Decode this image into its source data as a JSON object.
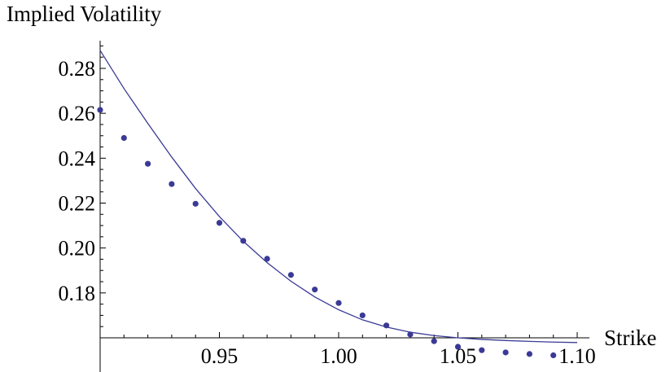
{
  "chart_data": {
    "type": "scatter",
    "ylabel": "Implied Volatility",
    "xlabel": "Strike",
    "xlim": [
      0.9,
      1.1
    ],
    "ylim": [
      0.16,
      0.29
    ],
    "x_axis_crosses_y_at": 0.16,
    "x_ticks": [
      {
        "value": 0.95,
        "label": "0.95"
      },
      {
        "value": 1.0,
        "label": "1.00"
      },
      {
        "value": 1.05,
        "label": "1.05"
      },
      {
        "value": 1.1,
        "label": "1.10"
      }
    ],
    "y_ticks": [
      {
        "value": 0.18,
        "label": "0.18"
      },
      {
        "value": 0.2,
        "label": "0.20"
      },
      {
        "value": 0.22,
        "label": "0.22"
      },
      {
        "value": 0.24,
        "label": "0.24"
      },
      {
        "value": 0.26,
        "label": "0.26"
      },
      {
        "value": 0.28,
        "label": "0.28"
      }
    ],
    "colors": {
      "series": "#3a3a96",
      "axis": "#000000"
    },
    "series": [
      {
        "kind": "points",
        "x": [
          0.9,
          0.91,
          0.92,
          0.93,
          0.94,
          0.95,
          0.96,
          0.97,
          0.98,
          0.99,
          1.0,
          1.01,
          1.02,
          1.03,
          1.04,
          1.05,
          1.06,
          1.07,
          1.08,
          1.09
        ],
        "y": [
          0.2615,
          0.249,
          0.2375,
          0.2285,
          0.2197,
          0.2112,
          0.2032,
          0.1952,
          0.188,
          0.1815,
          0.1755,
          0.17,
          0.1655,
          0.1615,
          0.1585,
          0.156,
          0.1545,
          0.1535,
          0.1528,
          0.1522
        ]
      },
      {
        "kind": "line",
        "x": [
          0.9,
          0.91,
          0.92,
          0.93,
          0.94,
          0.95,
          0.96,
          0.97,
          0.98,
          0.99,
          1.0,
          1.01,
          1.02,
          1.03,
          1.04,
          1.05,
          1.06,
          1.07,
          1.08,
          1.09,
          1.1
        ],
        "y": [
          0.288,
          0.271,
          0.2555,
          0.2405,
          0.2265,
          0.214,
          0.203,
          0.1935,
          0.1852,
          0.1782,
          0.1725,
          0.168,
          0.1648,
          0.1625,
          0.161,
          0.16,
          0.1593,
          0.1588,
          0.1584,
          0.1581,
          0.1579
        ]
      }
    ]
  }
}
